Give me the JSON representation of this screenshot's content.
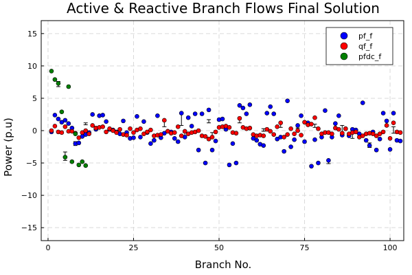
{
  "chart_data": {
    "type": "scatter",
    "title": "Active & Reactive Branch Flows Final Solution",
    "xlabel": "Branch No.",
    "ylabel": "Power (p.u)",
    "xlim": [
      -2,
      104
    ],
    "ylim": [
      -17,
      17
    ],
    "xticks": [
      0,
      25,
      50,
      75,
      100
    ],
    "yticks": [
      -15,
      -10,
      -5,
      0,
      5,
      10,
      15
    ],
    "xtick_labels": [
      "0",
      "25",
      "50",
      "75",
      "100"
    ],
    "ytick_labels": [
      "−15",
      "−10",
      "−5",
      "0",
      "5",
      "10",
      "15"
    ],
    "grid": true,
    "legend": "top-right",
    "series": [
      {
        "name": "pf_f",
        "color": "#0000ff",
        "points": [
          [
            1,
            -0.2
          ],
          [
            2,
            2.4
          ],
          [
            3,
            1.8
          ],
          [
            4,
            1.3
          ],
          [
            5,
            1.6
          ],
          [
            6,
            1.1
          ],
          [
            7,
            0.4
          ],
          [
            8,
            -2.0
          ],
          [
            9,
            -1.9
          ],
          [
            10,
            -0.9
          ],
          [
            11,
            -0.6
          ],
          [
            12,
            -0.3
          ],
          [
            13,
            2.5
          ],
          [
            14,
            0.2
          ],
          [
            15,
            2.3
          ],
          [
            16,
            2.4
          ],
          [
            17,
            1.4
          ],
          [
            18,
            0.2
          ],
          [
            19,
            0.1
          ],
          [
            20,
            -0.2
          ],
          [
            21,
            -0.5
          ],
          [
            22,
            1.5
          ],
          [
            23,
            -0.3
          ],
          [
            24,
            -1.2
          ],
          [
            25,
            -1.1
          ],
          [
            26,
            2.2
          ],
          [
            27,
            -1.0
          ],
          [
            28,
            1.4
          ],
          [
            29,
            -0.3
          ],
          [
            30,
            -2.0
          ],
          [
            31,
            -1.5
          ],
          [
            32,
            2.3
          ],
          [
            33,
            -1.1
          ],
          [
            34,
            -0.4
          ],
          [
            35,
            -0.1
          ],
          [
            36,
            -0.2
          ],
          [
            37,
            -1.2
          ],
          [
            38,
            -1.7
          ],
          [
            39,
            2.7
          ],
          [
            40,
            -1.0
          ],
          [
            41,
            2.0
          ],
          [
            42,
            0.7
          ],
          [
            43,
            2.6
          ],
          [
            44,
            -3.0
          ],
          [
            45,
            2.6
          ],
          [
            46,
            -5.0
          ],
          [
            47,
            3.2
          ],
          [
            48,
            -3.0
          ],
          [
            49,
            -1.6
          ],
          [
            50,
            1.7
          ],
          [
            51,
            1.8
          ],
          [
            52,
            0.2
          ],
          [
            53,
            -5.3
          ],
          [
            54,
            -2.0
          ],
          [
            55,
            -5.0
          ],
          [
            56,
            3.9
          ],
          [
            57,
            3.5
          ],
          [
            58,
            2.6
          ],
          [
            59,
            4.0
          ],
          [
            60,
            -1.2
          ],
          [
            61,
            -1.5
          ],
          [
            62,
            -2.1
          ],
          [
            63,
            -2.3
          ],
          [
            64,
            2.7
          ],
          [
            65,
            3.7
          ],
          [
            66,
            2.6
          ],
          [
            67,
            -1.3
          ],
          [
            68,
            -1.0
          ],
          [
            69,
            -3.2
          ],
          [
            70,
            4.6
          ],
          [
            71,
            -2.5
          ],
          [
            72,
            -1.4
          ],
          [
            73,
            0.8
          ],
          [
            74,
            2.3
          ],
          [
            75,
            -1.7
          ],
          [
            76,
            1.2
          ],
          [
            77,
            -5.5
          ],
          [
            78,
            -1.4
          ],
          [
            79,
            -5.0
          ],
          [
            80,
            -1.0
          ],
          [
            81,
            3.1
          ],
          [
            82,
            -4.6
          ],
          [
            83,
            -1.0
          ],
          [
            84,
            1.1
          ],
          [
            85,
            2.3
          ],
          [
            86,
            -0.7
          ],
          [
            87,
            0.3
          ],
          [
            88,
            -0.8
          ],
          [
            89,
            0.2
          ],
          [
            90,
            0.1
          ],
          [
            91,
            -0.5
          ],
          [
            92,
            4.3
          ],
          [
            93,
            -1.5
          ],
          [
            94,
            -2.3
          ],
          [
            95,
            -0.2
          ],
          [
            96,
            -3.0
          ],
          [
            97,
            -1.3
          ],
          [
            98,
            2.7
          ],
          [
            99,
            1.5
          ],
          [
            100,
            -2.9
          ],
          [
            101,
            2.7
          ],
          [
            102,
            -1.5
          ],
          [
            103,
            -1.6
          ]
        ]
      },
      {
        "name": "qf_f",
        "color": "#ff0000",
        "points": [
          [
            1,
            0.0
          ],
          [
            2,
            0.7
          ],
          [
            3,
            -0.2
          ],
          [
            4,
            -0.3
          ],
          [
            5,
            0.6
          ],
          [
            6,
            -0.1
          ],
          [
            7,
            -0.1
          ],
          [
            8,
            -0.4
          ],
          [
            9,
            -1.1
          ],
          [
            10,
            -0.3
          ],
          [
            11,
            0.0
          ],
          [
            12,
            -0.5
          ],
          [
            13,
            0.8
          ],
          [
            14,
            0.4
          ],
          [
            15,
            0.5
          ],
          [
            16,
            0.6
          ],
          [
            17,
            -0.2
          ],
          [
            18,
            0.3
          ],
          [
            19,
            0.0
          ],
          [
            20,
            -0.3
          ],
          [
            21,
            0.2
          ],
          [
            22,
            -0.6
          ],
          [
            23,
            -0.7
          ],
          [
            24,
            0.3
          ],
          [
            25,
            -0.3
          ],
          [
            26,
            0.1
          ],
          [
            27,
            0.3
          ],
          [
            28,
            -0.5
          ],
          [
            29,
            -0.2
          ],
          [
            30,
            0.1
          ],
          [
            31,
            -0.8
          ],
          [
            32,
            -0.7
          ],
          [
            33,
            -0.6
          ],
          [
            34,
            1.6
          ],
          [
            35,
            -0.1
          ],
          [
            36,
            -0.4
          ],
          [
            37,
            -0.3
          ],
          [
            38,
            0.6
          ],
          [
            39,
            -0.8
          ],
          [
            40,
            -0.1
          ],
          [
            41,
            -0.5
          ],
          [
            42,
            -0.3
          ],
          [
            43,
            -0.2
          ],
          [
            44,
            0.0
          ],
          [
            45,
            -0.8
          ],
          [
            46,
            -0.9
          ],
          [
            47,
            -1.3
          ],
          [
            48,
            -1.0
          ],
          [
            49,
            -0.2
          ],
          [
            50,
            0.5
          ],
          [
            51,
            0.6
          ],
          [
            52,
            0.7
          ],
          [
            53,
            0.5
          ],
          [
            54,
            -0.3
          ],
          [
            55,
            -0.4
          ],
          [
            56,
            1.9
          ],
          [
            57,
            0.5
          ],
          [
            58,
            0.3
          ],
          [
            59,
            0.4
          ],
          [
            60,
            -0.6
          ],
          [
            61,
            -0.8
          ],
          [
            62,
            -0.7
          ],
          [
            63,
            -0.8
          ],
          [
            64,
            0.2
          ],
          [
            65,
            -0.1
          ],
          [
            66,
            -0.6
          ],
          [
            67,
            0.6
          ],
          [
            68,
            1.2
          ],
          [
            69,
            -1.0
          ],
          [
            70,
            -0.6
          ],
          [
            71,
            0.3
          ],
          [
            72,
            -0.5
          ],
          [
            73,
            0.0
          ],
          [
            74,
            -0.7
          ],
          [
            75,
            1.3
          ],
          [
            76,
            0.9
          ],
          [
            77,
            1.0
          ],
          [
            78,
            2.0
          ],
          [
            79,
            0.3
          ],
          [
            80,
            -0.5
          ],
          [
            81,
            -0.3
          ],
          [
            82,
            -0.3
          ],
          [
            83,
            -0.5
          ],
          [
            84,
            0.4
          ],
          [
            85,
            0.2
          ],
          [
            86,
            -0.4
          ],
          [
            87,
            0.3
          ],
          [
            88,
            -0.5
          ],
          [
            89,
            -0.3
          ],
          [
            90,
            -0.2
          ],
          [
            91,
            -1.0
          ],
          [
            92,
            -0.8
          ],
          [
            93,
            -0.5
          ],
          [
            94,
            -0.4
          ],
          [
            95,
            -0.5
          ],
          [
            96,
            -0.8
          ],
          [
            97,
            -0.5
          ],
          [
            98,
            -0.2
          ],
          [
            99,
            0.8
          ],
          [
            100,
            -1.2
          ],
          [
            101,
            1.2
          ],
          [
            102,
            -0.2
          ],
          [
            103,
            -0.3
          ]
        ]
      },
      {
        "name": "pfdc_f",
        "color": "#008000",
        "points": [
          [
            1,
            9.2
          ],
          [
            2,
            7.9
          ],
          [
            3,
            7.3
          ],
          [
            4,
            2.9
          ],
          [
            5,
            -4.1
          ],
          [
            6,
            6.8
          ],
          [
            7,
            -4.8
          ],
          [
            8,
            -0.5
          ],
          [
            9,
            -5.3
          ],
          [
            10,
            -4.8
          ],
          [
            11,
            -5.4
          ]
        ]
      }
    ],
    "errorbars": [
      [
        3,
        6.8,
        7.6
      ],
      [
        5,
        -4.6,
        -3.3
      ],
      [
        8,
        -2.3,
        -1.7
      ],
      [
        11,
        0.9,
        1.2
      ],
      [
        34,
        0.6,
        1.6
      ],
      [
        39,
        0.8,
        2.7
      ],
      [
        40,
        -0.8,
        -0.3
      ],
      [
        47,
        1.2,
        1.7
      ],
      [
        48,
        -1.0,
        -0.3
      ],
      [
        56,
        1.2,
        1.9
      ],
      [
        63,
        -0.1,
        0.3
      ],
      [
        68,
        0.5,
        1.2
      ],
      [
        73,
        0.0,
        0.4
      ],
      [
        78,
        0.5,
        1.0
      ],
      [
        82,
        -5.1,
        -4.6
      ],
      [
        86,
        -0.3,
        0.8
      ],
      [
        89,
        -1.2,
        0.3
      ],
      [
        94,
        -2.6,
        -1.9
      ],
      [
        99,
        0.8,
        1.5
      ],
      [
        101,
        -0.4,
        0.6
      ]
    ]
  }
}
